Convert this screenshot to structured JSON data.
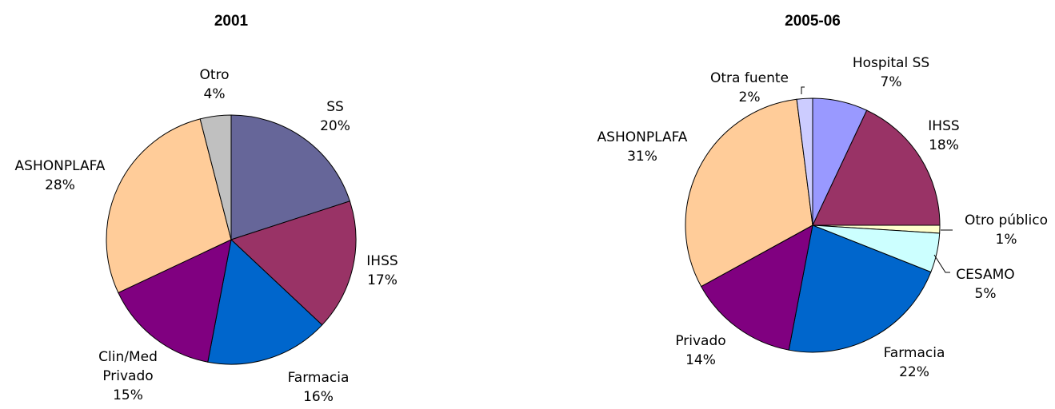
{
  "chart_data": [
    {
      "type": "pie",
      "title": "2001",
      "slices": [
        {
          "label": "SS",
          "value": 20,
          "color": "#666699"
        },
        {
          "label": "IHSS",
          "value": 17,
          "color": "#993366"
        },
        {
          "label": "Farmacia",
          "value": 16,
          "color": "#0066CC"
        },
        {
          "label": "Clin/Med Privado",
          "value": 15,
          "color": "#800080"
        },
        {
          "label": "ASHONPLAFA",
          "value": 28,
          "color": "#FFCC99"
        },
        {
          "label": "Otro",
          "value": 4,
          "color": "#C0C0C0"
        }
      ]
    },
    {
      "type": "pie",
      "title": "2005-06",
      "slices": [
        {
          "label": "Hospital SS",
          "value": 7,
          "color": "#9999FF"
        },
        {
          "label": "IHSS",
          "value": 18,
          "color": "#993366"
        },
        {
          "label": "Otro público",
          "value": 1,
          "color": "#FFFFCC"
        },
        {
          "label": "CESAMO",
          "value": 5,
          "color": "#CCFFFF"
        },
        {
          "label": "Farmacia",
          "value": 22,
          "color": "#0066CC"
        },
        {
          "label": "Privado",
          "value": 14,
          "color": "#800080"
        },
        {
          "label": "ASHONPLAFA",
          "value": 31,
          "color": "#FFCC99"
        },
        {
          "label": "Otra fuente",
          "value": 2,
          "color": "#CCCCFF"
        }
      ]
    }
  ]
}
